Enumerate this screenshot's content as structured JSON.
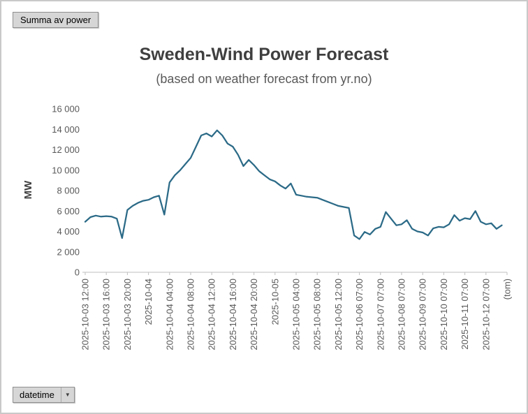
{
  "field_buttons": {
    "value_label": "Summa av power",
    "axis_label": "datetime"
  },
  "chart_data": {
    "type": "line",
    "title": "Sweden-Wind Power Forecast",
    "subtitle": "(based on weather forecast from yr.no)",
    "ylabel": "MW",
    "ylim": [
      0,
      16000
    ],
    "ytick_step": 2000,
    "ytick_labels": [
      "0",
      "2 000",
      "4 000",
      "6 000",
      "8 000",
      "10 000",
      "12 000",
      "14 000",
      "16 000"
    ],
    "xtick_every": 4,
    "xtick_labels": [
      "2025-10-03 12:00",
      "2025-10-03 16:00",
      "2025-10-03 20:00",
      "2025-10-04",
      "2025-10-04 04:00",
      "2025-10-04 08:00",
      "2025-10-04 12:00",
      "2025-10-04 16:00",
      "2025-10-04 20:00",
      "2025-10-05",
      "2025-10-05 04:00",
      "2025-10-05 08:00",
      "2025-10-05 12:00",
      "2025-10-06 07:00",
      "2025-10-07 07:00",
      "2025-10-08 07:00",
      "2025-10-09 07:00",
      "2025-10-10 07:00",
      "2025-10-11 07:00",
      "2025-10-12 07:00",
      "(tom)"
    ],
    "values": [
      4950,
      5400,
      5550,
      5450,
      5500,
      5450,
      5250,
      3350,
      6100,
      6500,
      6800,
      7000,
      7100,
      7350,
      7500,
      5650,
      8800,
      9500,
      10000,
      10600,
      11200,
      12300,
      13400,
      13600,
      13300,
      13900,
      13400,
      12600,
      12300,
      11500,
      10400,
      11000,
      10500,
      9900,
      9500,
      9100,
      8900,
      8500,
      8200,
      8700,
      7600,
      7500,
      7400,
      7350,
      7300,
      7100,
      6900,
      6700,
      6500,
      6400,
      6300,
      3600,
      3250,
      3950,
      3700,
      4250,
      4450,
      5900,
      5250,
      4600,
      4700,
      5100,
      4250,
      4000,
      3900,
      3600,
      4300,
      4450,
      4400,
      4700,
      5600,
      5050,
      5300,
      5200,
      6000,
      4950,
      4700,
      4800,
      4250,
      4600,
      null
    ],
    "line_color": "#2b6a87",
    "axis_color": "#bfbfbf",
    "tick_color": "#595959",
    "title_color": "#3f3f3f",
    "legend": "none",
    "grid": "off"
  }
}
